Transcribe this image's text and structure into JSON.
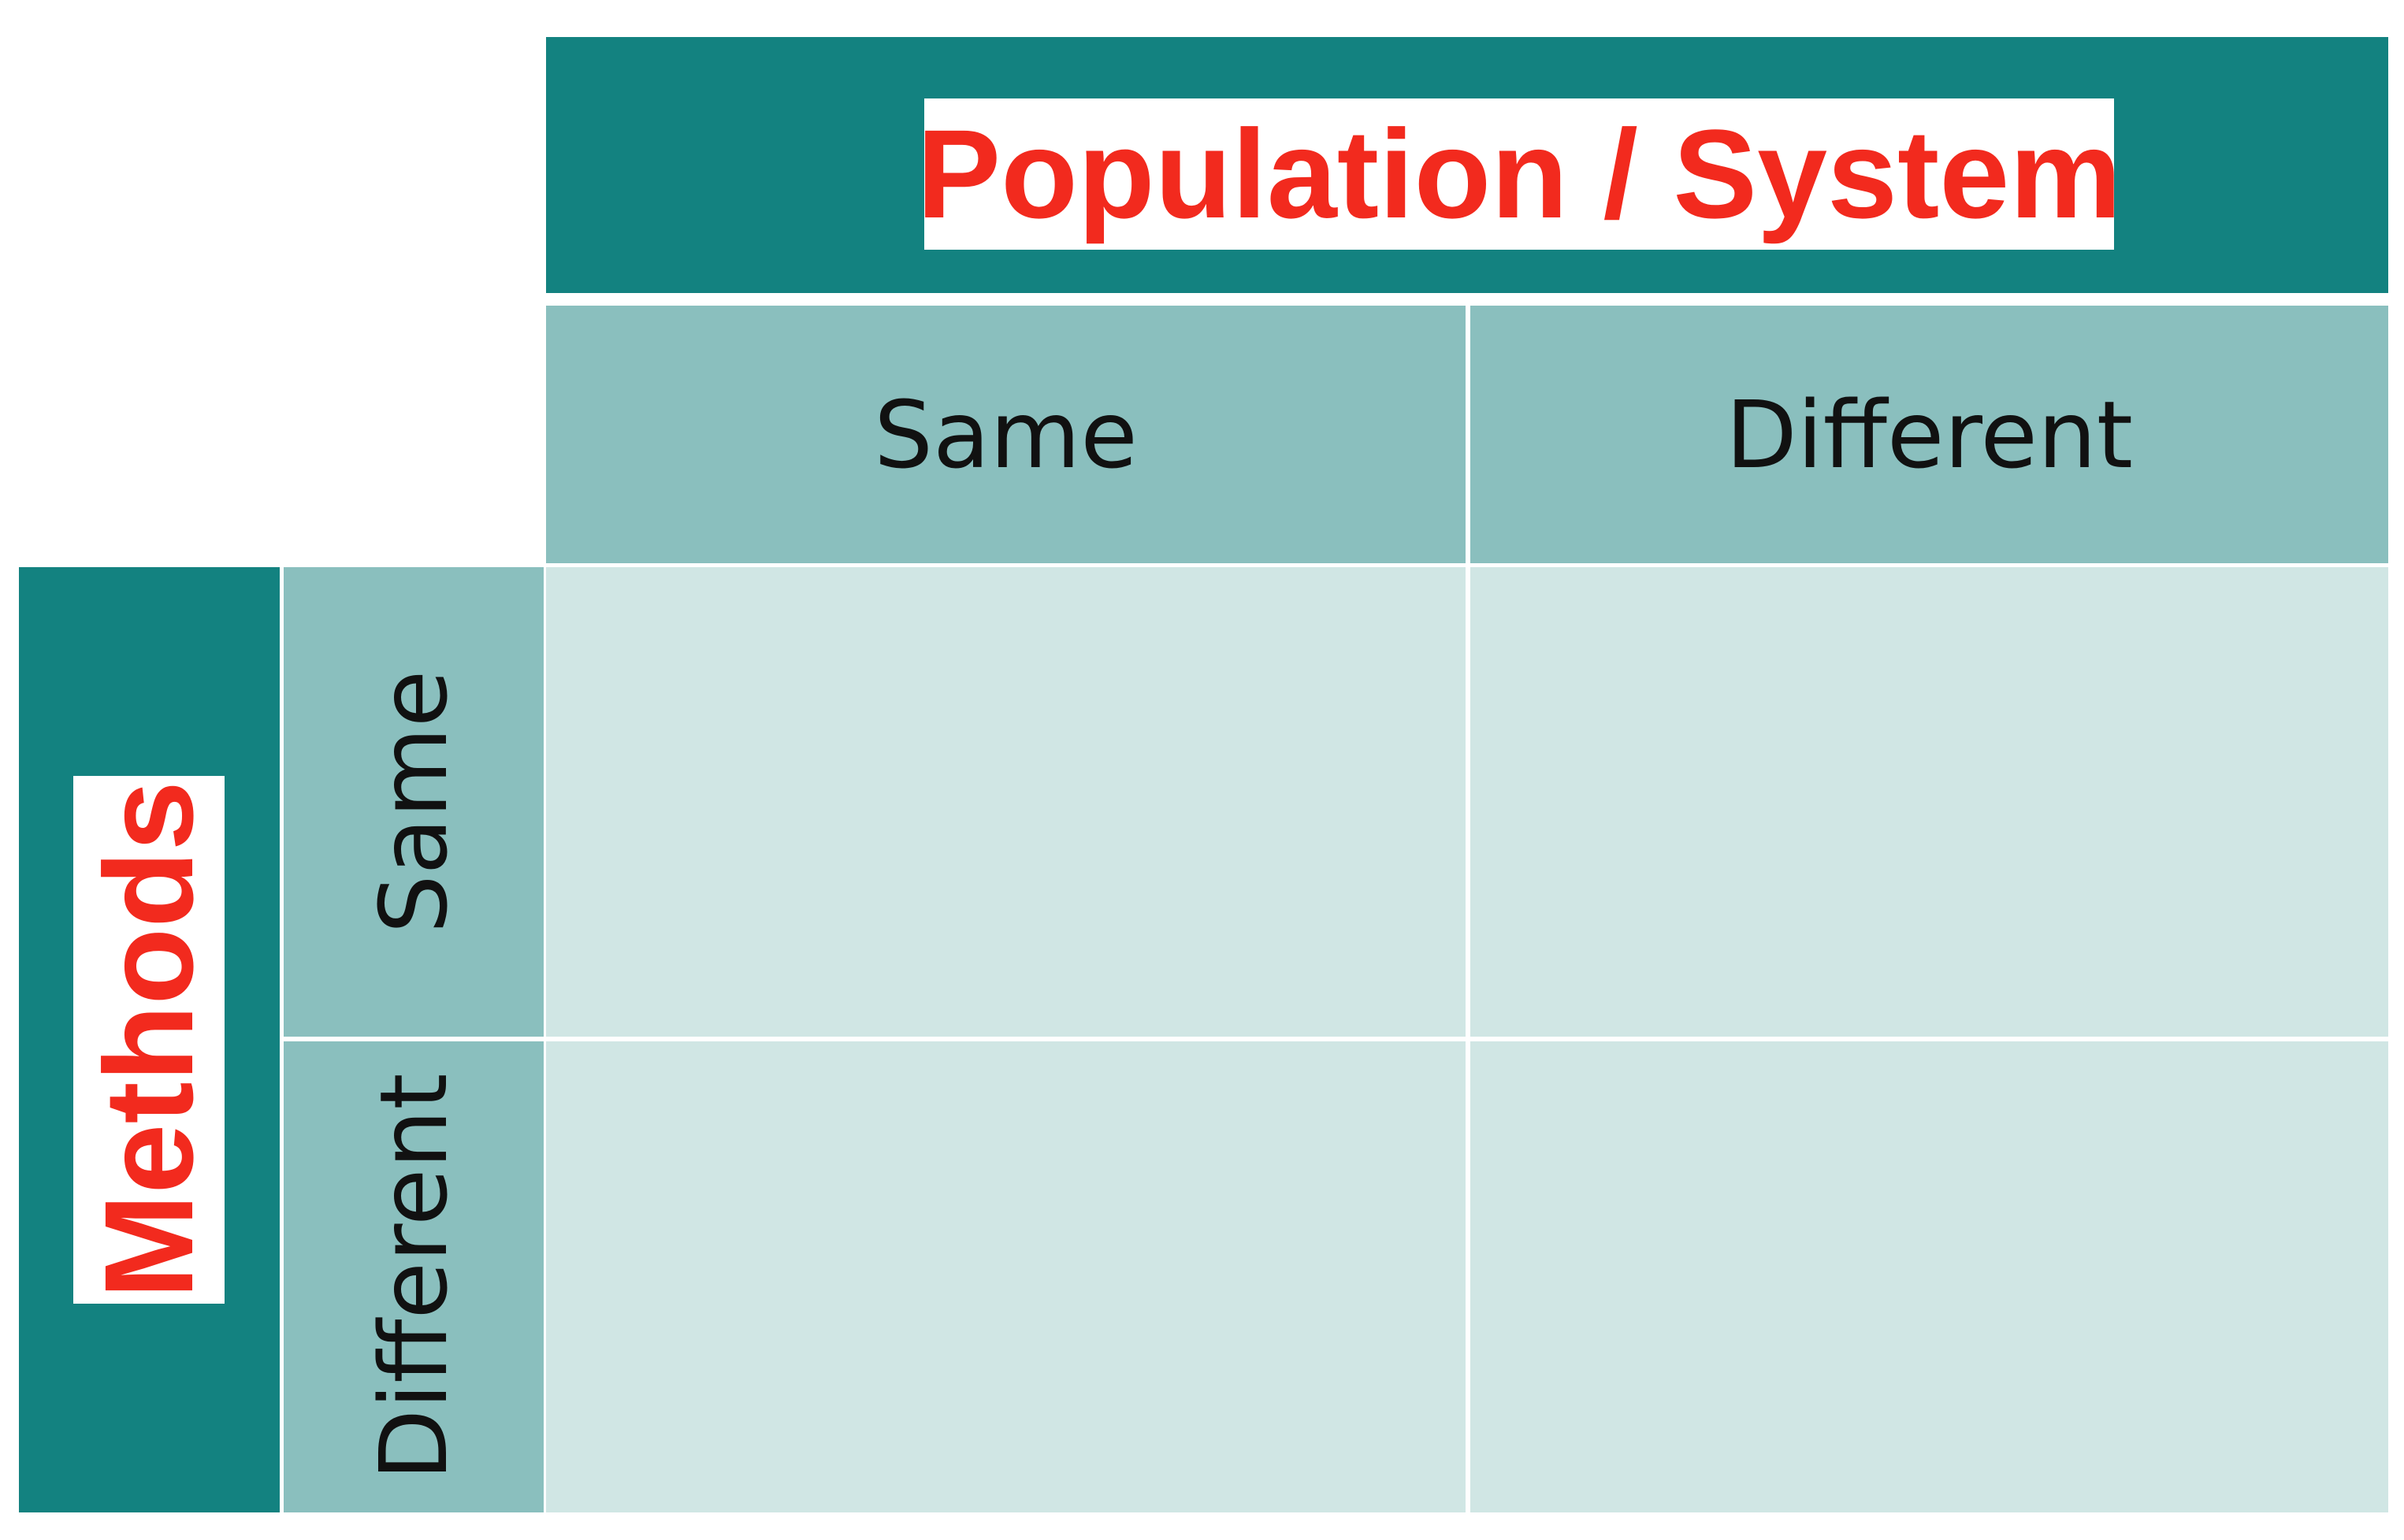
{
  "column_header": {
    "title": "Population / System",
    "options": [
      "Same",
      "Different"
    ]
  },
  "row_header": {
    "title": "Methods",
    "options": [
      "Same",
      "Different"
    ]
  },
  "colors": {
    "dark_teal": "#138280",
    "mid_teal": "#8abfbe",
    "light_teal": "#d0e6e4",
    "title_red": "#f22a1e"
  }
}
